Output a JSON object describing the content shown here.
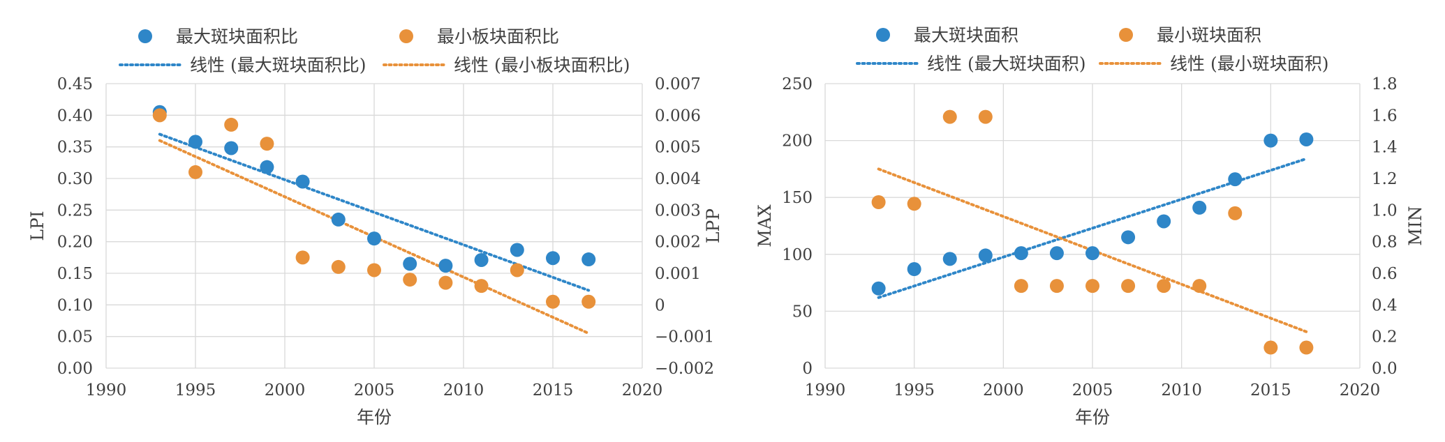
{
  "colors": {
    "blue": "#2e86c8",
    "orange": "#e8913a",
    "grid": "#d9d9d9",
    "text": "#404040"
  },
  "chart_data": [
    {
      "type": "scatter",
      "xlabel": "年份",
      "ylabel": "LPI",
      "y2label": "LPP",
      "xlim": [
        1990,
        2020
      ],
      "ylim": [
        0,
        0.45
      ],
      "y2lim": [
        -0.002,
        0.007
      ],
      "grid": true,
      "legend_position": "top",
      "xticks": [
        "1990",
        "1995",
        "2000",
        "2005",
        "2010",
        "2015",
        "2020"
      ],
      "yticks": [
        "0.00",
        "0.05",
        "0.10",
        "0.15",
        "0.20",
        "0.25",
        "0.30",
        "0.35",
        "0.40",
        "0.45"
      ],
      "y2ticks": [
        "−0.002",
        "−0.001",
        "0",
        "0.001",
        "0.002",
        "0.003",
        "0.004",
        "0.005",
        "0.006",
        "0.007"
      ],
      "series": [
        {
          "name": "最大斑块面积比",
          "axis": "left",
          "color": "#2e86c8",
          "x": [
            1993,
            1995,
            1997,
            1999,
            2001,
            2003,
            2005,
            2007,
            2009,
            2011,
            2013,
            2015,
            2017
          ],
          "y": [
            0.405,
            0.358,
            0.348,
            0.318,
            0.295,
            0.235,
            0.205,
            0.165,
            0.162,
            0.171,
            0.187,
            0.174,
            0.172
          ]
        },
        {
          "name": "最小板块面积比",
          "axis": "right",
          "color": "#e8913a",
          "x": [
            1993,
            1995,
            1997,
            1999,
            2001,
            2003,
            2005,
            2007,
            2009,
            2011,
            2013,
            2015,
            2017
          ],
          "y": [
            0.006,
            0.0042,
            0.0057,
            0.0051,
            0.0015,
            0.0012,
            0.0011,
            0.0008,
            0.0007,
            0.0006,
            0.0011,
            0.0001,
            0.0001
          ]
        }
      ],
      "trendlines": [
        {
          "name": "线性 (最大斑块面积比)",
          "axis": "left",
          "color": "#2e86c8",
          "x": [
            1993,
            2017
          ],
          "y": [
            0.37,
            0.123
          ]
        },
        {
          "name": "线性 (最小板块面积比)",
          "axis": "right",
          "color": "#e8913a",
          "x": [
            1993,
            2017
          ],
          "y": [
            0.0052,
            -0.0009
          ]
        }
      ]
    },
    {
      "type": "scatter",
      "xlabel": "年份",
      "ylabel": "MAX",
      "y2label": "MIN",
      "xlim": [
        1990,
        2020
      ],
      "ylim": [
        0,
        250
      ],
      "y2lim": [
        0,
        1.8
      ],
      "grid": true,
      "legend_position": "top",
      "xticks": [
        "1990",
        "1995",
        "2000",
        "2005",
        "2010",
        "2015",
        "2020"
      ],
      "yticks": [
        "0",
        "50",
        "100",
        "150",
        "200",
        "250"
      ],
      "y2ticks": [
        "0.0",
        "0.2",
        "0.4",
        "0.6",
        "0.8",
        "1.0",
        "1.2",
        "1.4",
        "1.6",
        "1.8"
      ],
      "series": [
        {
          "name": "最大斑块面积",
          "axis": "left",
          "color": "#2e86c8",
          "x": [
            1993,
            1995,
            1997,
            1999,
            2001,
            2003,
            2005,
            2007,
            2009,
            2011,
            2013,
            2015,
            2017
          ],
          "y": [
            70,
            87,
            96,
            99,
            101,
            101,
            101,
            115,
            129,
            141,
            166,
            200,
            201
          ]
        },
        {
          "name": "最小斑块面积",
          "axis": "right",
          "color": "#e8913a",
          "x": [
            1993,
            1995,
            1997,
            1999,
            2001,
            2003,
            2005,
            2007,
            2009,
            2011,
            2013,
            2015,
            2017
          ],
          "y": [
            1.05,
            1.04,
            1.59,
            1.59,
            0.52,
            0.52,
            0.52,
            0.52,
            0.52,
            0.52,
            0.98,
            0.13,
            0.13
          ]
        }
      ],
      "trendlines": [
        {
          "name": "线性 (最大斑块面积)",
          "axis": "left",
          "color": "#2e86c8",
          "x": [
            1993,
            2017
          ],
          "y": [
            62,
            184
          ]
        },
        {
          "name": "线性 (最小斑块面积)",
          "axis": "right",
          "color": "#e8913a",
          "x": [
            1993,
            2017
          ],
          "y": [
            1.26,
            0.23
          ]
        }
      ]
    }
  ]
}
